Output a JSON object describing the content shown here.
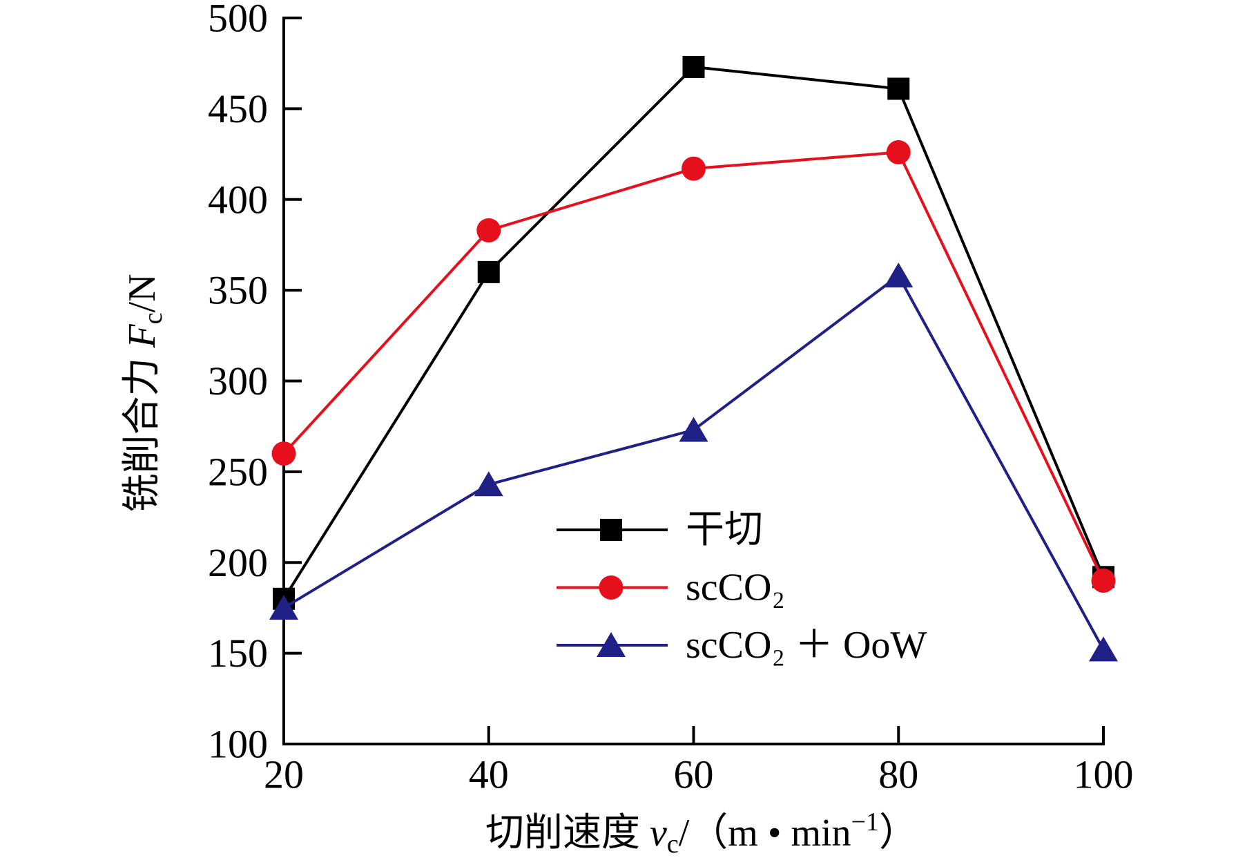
{
  "chart_data": {
    "type": "line",
    "xlabel": {
      "text": "切削速度 ",
      "var": "v",
      "var_sub": "c",
      "unit": "/（m • min",
      "unit_sup": "−1",
      "unit_end": "）"
    },
    "ylabel": {
      "text": "铣削合力 ",
      "var": "F",
      "var_sub": "c",
      "unit": "/N"
    },
    "x": [
      20,
      40,
      60,
      80,
      100
    ],
    "xlim": [
      20,
      100
    ],
    "ylim": [
      100,
      500
    ],
    "xticks": [
      20,
      40,
      60,
      80,
      100
    ],
    "yticks": [
      100,
      150,
      200,
      250,
      300,
      350,
      400,
      450,
      500
    ],
    "grid": false,
    "legend_position": "lower-center",
    "series": [
      {
        "name": "干切",
        "marker": "square",
        "color": "#000000",
        "values": [
          180,
          360,
          473,
          461,
          192
        ]
      },
      {
        "name": "scCO₂",
        "marker": "circle",
        "color": "#e5101c",
        "values": [
          260,
          383,
          417,
          426,
          190
        ]
      },
      {
        "name": "scCO₂ ＋ OoW",
        "marker": "triangle",
        "color": "#1f2186",
        "values": [
          175,
          243,
          273,
          358,
          152
        ]
      }
    ]
  }
}
